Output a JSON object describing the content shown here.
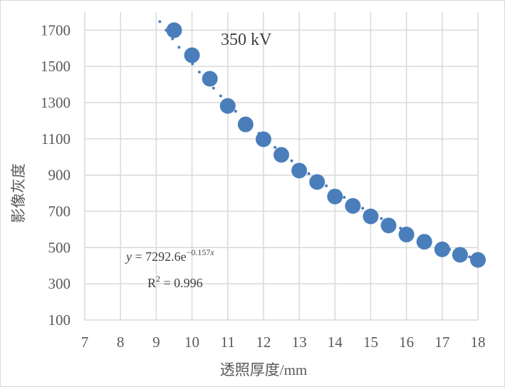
{
  "chart_data": {
    "type": "scatter",
    "annotation": "350 kV",
    "xlabel": "透照厚度/mm",
    "ylabel": "影像灰度",
    "xlim": [
      7,
      18
    ],
    "ylim": [
      100,
      1800
    ],
    "xticks": [
      7,
      8,
      9,
      10,
      11,
      12,
      13,
      14,
      15,
      16,
      17,
      18
    ],
    "yticks": [
      100,
      300,
      500,
      700,
      900,
      1100,
      1300,
      1500,
      1700
    ],
    "grid": true,
    "series": [
      {
        "x": [
          9.5,
          10,
          10.5,
          11,
          11.5,
          12,
          12.5,
          13,
          13.5,
          14,
          14.5,
          15,
          15.5,
          16,
          16.5,
          17,
          17.5,
          18
        ],
        "y": [
          1700,
          1562,
          1432,
          1282,
          1180,
          1098,
          1012,
          925,
          862,
          782,
          730,
          672,
          622,
          572,
          532,
          490,
          460,
          432
        ],
        "color": "#4a7ebb"
      }
    ],
    "trendline": {
      "type": "exponential",
      "a": 7292.6,
      "b": -0.157,
      "x_range": [
        9.1,
        18
      ],
      "style": "dotted",
      "color": "#4a7ebb"
    },
    "equation": {
      "y_var": "y",
      "eq_main": " = 7292.6e",
      "eq_exp": "−0.157",
      "eq_exp_var": "x",
      "r2_main": "R",
      "r2_sup": "2",
      "r2_value": " = 0.996"
    }
  }
}
